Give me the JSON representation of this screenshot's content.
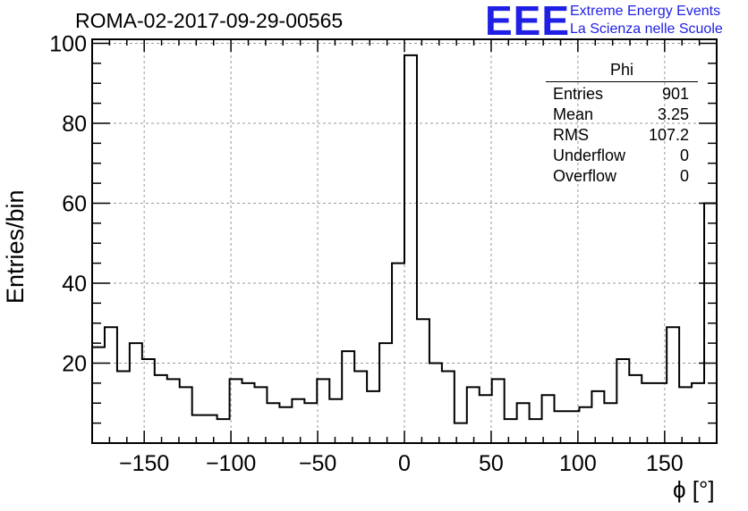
{
  "title": "ROMA-02-2017-09-29-00565",
  "logo": {
    "mark": "EEE",
    "line1": "Extreme Energy Events",
    "line2": "La Scienza nelle Scuole",
    "color": "#1f1fe6"
  },
  "stats": {
    "title": "Phi",
    "rows": [
      {
        "label": "Entries",
        "value": "901"
      },
      {
        "label": "Mean",
        "value": "3.25"
      },
      {
        "label": "RMS",
        "value": "107.2"
      },
      {
        "label": "Underflow",
        "value": "0"
      },
      {
        "label": "Overflow",
        "value": "0"
      }
    ]
  },
  "chart_data": {
    "type": "histogram",
    "xlabel": "ϕ [°]",
    "ylabel": "Entries/bin",
    "xlim": [
      -180,
      180
    ],
    "ylim": [
      0,
      101
    ],
    "bin_width": 7.2,
    "values": [
      24,
      29,
      18,
      25,
      21,
      17,
      16,
      14,
      7,
      7,
      6,
      16,
      15,
      14,
      10,
      9,
      11,
      10,
      16,
      11,
      23,
      18,
      13,
      25,
      45,
      97,
      31,
      20,
      18,
      5,
      14,
      12,
      16,
      6,
      10,
      6,
      12,
      8,
      8,
      9,
      13,
      10,
      21,
      17,
      15,
      15,
      29,
      14,
      15,
      60
    ],
    "xticks": [
      -150,
      -100,
      -50,
      0,
      50,
      100,
      150
    ],
    "xtick_labels": [
      "−150",
      "−100",
      "−50",
      "0",
      "50",
      "100",
      "150"
    ],
    "yticks": [
      20,
      40,
      60,
      80,
      100
    ],
    "ytick_labels": [
      "20",
      "40",
      "60",
      "80",
      "100"
    ],
    "grid": true
  }
}
